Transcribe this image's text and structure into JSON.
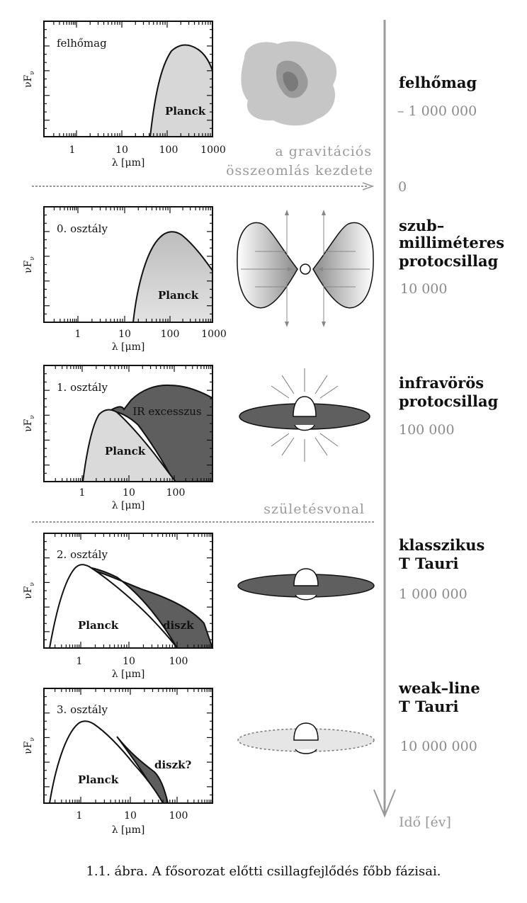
{
  "axis": {
    "y_label": "νF",
    "y_sub": "ν",
    "x_label": "λ [μm]"
  },
  "panels": [
    {
      "label": "felhőmag",
      "curve1": "Planck",
      "curve2": "",
      "ticks": [
        "1",
        "10",
        "100",
        "1000"
      ]
    },
    {
      "label": "0. osztály",
      "curve1": "Planck",
      "curve2": "",
      "ticks": [
        "1",
        "10",
        "100",
        "1000"
      ]
    },
    {
      "label": "1. osztály",
      "curve1": "Planck",
      "curve2": "IR excesszus",
      "ticks": [
        "1",
        "10",
        "100"
      ]
    },
    {
      "label": "2. osztály",
      "curve1": "Planck",
      "curve2": "diszk",
      "ticks": [
        "1",
        "10",
        "100"
      ]
    },
    {
      "label": "3. osztály",
      "curve1": "Planck",
      "curve2": "diszk?",
      "ticks": [
        "1",
        "10",
        "100"
      ]
    }
  ],
  "stages": [
    {
      "title": [
        "felhőmag"
      ],
      "time": "– 1 000 000"
    },
    {
      "title": [
        "szub–",
        "milliméteres",
        "protocsillag"
      ],
      "time": "10 000"
    },
    {
      "title": [
        "infravörös",
        "protocsillag"
      ],
      "time": "100 000"
    },
    {
      "title": [
        "klasszikus",
        "T Tauri"
      ],
      "time": "1 000 000"
    },
    {
      "title": [
        "weak–line",
        "T Tauri"
      ],
      "time": "10 000 000"
    }
  ],
  "notes": {
    "collapse_1": "a gravitációs",
    "collapse_2": "összeomlás kezdete",
    "zero": "0",
    "birthline": "születésvonal",
    "time_axis": "Idő [év]"
  },
  "caption": "1.1. ábra. A fősorozat előtti csillagfejlődés főbb fázisai.",
  "colors": {
    "planck_fill": "#d9d9d9",
    "excess_fill": "#5f5f5f",
    "time_text": "#8a8a8a",
    "arrow": "#999999"
  }
}
